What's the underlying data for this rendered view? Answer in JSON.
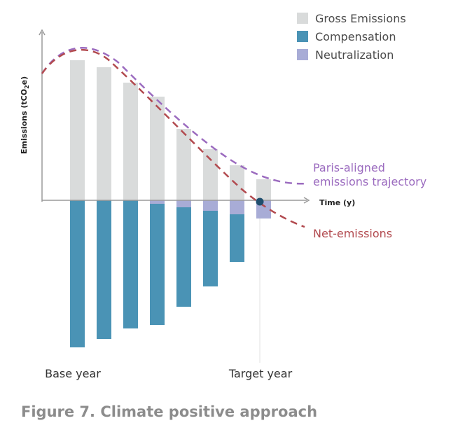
{
  "caption": "Figure 7. Climate positive approach",
  "chart_data": {
    "type": "bar",
    "ylabel_parts": [
      "Emissions (tCO",
      "2",
      "e)"
    ],
    "xlabel": "Time (y)",
    "legend": [
      {
        "name": "Gross Emissions",
        "color": "#d9dbdb"
      },
      {
        "name": "Compensation",
        "color": "#4a93b5"
      },
      {
        "name": "Neutralization",
        "color": "#a8acd6"
      }
    ],
    "series": [
      {
        "name": "Gross Emissions",
        "values": [
          200,
          190,
          168,
          148,
          102,
          73,
          50,
          30
        ]
      },
      {
        "name": "Compensation",
        "values": [
          -210,
          -198,
          -183,
          -173,
          -142,
          -108,
          -68,
          0
        ]
      },
      {
        "name": "Neutralization",
        "values": [
          0,
          0,
          0,
          -5,
          -10,
          -15,
          -20,
          -26
        ]
      }
    ],
    "curves": [
      {
        "name": "Paris-aligned emissions trajectory",
        "label_lines": [
          "Paris-aligned",
          "emissions trajectory"
        ],
        "color": "#9b6bbf"
      },
      {
        "name": "Net-emissions",
        "label_lines": [
          "Net-emissions"
        ],
        "color": "#b24a4f"
      }
    ],
    "x_labels": {
      "base": "Base year",
      "target": "Target year"
    },
    "target_marker_color": "#1f4e6e"
  }
}
